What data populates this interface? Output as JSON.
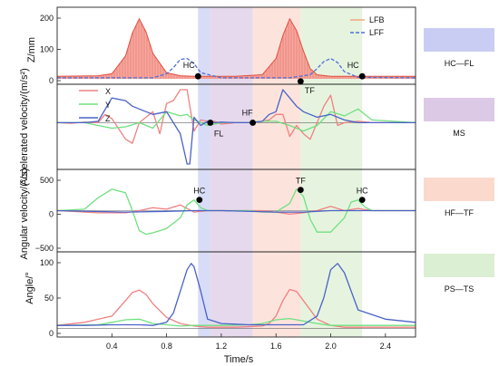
{
  "xlabel": "Time/s",
  "x_ticks": [
    "0.4",
    "0.8",
    "1.2",
    "1.6",
    "2.0",
    "2.4"
  ],
  "phase_legend": [
    {
      "label": "HC—FL",
      "color": "#c9cdf3"
    },
    {
      "label": "MS",
      "color": "#dcc9e6"
    },
    {
      "label": "HF—TF",
      "color": "#fbd9cd"
    },
    {
      "label": "PS—TS",
      "color": "#dbefd2"
    }
  ],
  "colors": {
    "x": "#f08080",
    "y": "#6fe07f",
    "z": "#4a62c8",
    "lfb": "#f3a07a",
    "lff": "#4f6fd8"
  },
  "chart_data": [
    {
      "type": "area",
      "ylabel": "Z/mm",
      "ylim": [
        0,
        130
      ],
      "y_ticks": [
        "200",
        "100",
        "0"
      ],
      "xlim": [
        0,
        2.62
      ],
      "series": [
        {
          "name": "LFB",
          "x": [
            0,
            0.3,
            0.4,
            0.5,
            0.55,
            0.6,
            0.65,
            0.7,
            0.8,
            0.9,
            1.0,
            1.3,
            1.5,
            1.6,
            1.65,
            1.7,
            1.75,
            1.8,
            1.85,
            1.9,
            2.0,
            2.1,
            2.2,
            2.62
          ],
          "values": [
            5,
            6,
            10,
            45,
            90,
            118,
            92,
            50,
            12,
            6,
            5,
            5,
            8,
            40,
            85,
            118,
            95,
            55,
            20,
            8,
            5,
            5,
            5,
            5
          ]
        },
        {
          "name": "LFF",
          "x": [
            0,
            0.7,
            0.8,
            0.85,
            0.9,
            0.95,
            1.0,
            1.05,
            1.2,
            1.7,
            1.85,
            1.9,
            1.95,
            2.0,
            2.05,
            2.1,
            2.2,
            2.62
          ],
          "values": [
            2,
            2,
            10,
            22,
            38,
            40,
            30,
            12,
            2,
            2,
            8,
            20,
            34,
            40,
            32,
            14,
            3,
            2
          ]
        }
      ],
      "events": [
        {
          "label": "HC",
          "x": 1.03,
          "y": 5
        },
        {
          "label": "TF",
          "x": 1.78,
          "y": -5
        },
        {
          "label": "HC",
          "x": 2.23,
          "y": 5
        }
      ]
    },
    {
      "type": "line",
      "ylabel": "Accelerated velocity/(m/s²)",
      "ylim": [
        -1.5,
        1.2
      ],
      "series": [
        {
          "name": "X",
          "x": [
            0,
            0.1,
            0.2,
            0.3,
            0.35,
            0.4,
            0.5,
            0.55,
            0.6,
            0.7,
            0.75,
            0.8,
            0.85,
            0.9,
            0.95,
            1.0,
            1.05,
            1.1,
            1.15,
            1.2,
            1.3,
            1.4,
            1.5,
            1.55,
            1.6,
            1.65,
            1.7,
            1.75,
            1.8,
            1.85,
            1.9,
            1.95,
            2.0,
            2.05,
            2.1,
            2.2,
            2.3,
            2.4,
            2.62
          ],
          "values": [
            0,
            -0.02,
            0.02,
            0,
            0.3,
            0.15,
            -0.6,
            -0.75,
            0,
            0.4,
            -0.4,
            0.7,
            0.8,
            1.4,
            1.2,
            -0.3,
            0.1,
            0.05,
            0.05,
            -0.05,
            0,
            0,
            0.05,
            0.1,
            0.3,
            0.3,
            -0.5,
            -0.1,
            -0.4,
            -0.6,
            0,
            0.6,
            1.0,
            -0.1,
            0,
            0.05,
            0,
            0,
            0
          ]
        },
        {
          "name": "Y",
          "x": [
            0,
            0.2,
            0.3,
            0.4,
            0.5,
            0.6,
            0.7,
            0.8,
            0.9,
            0.95,
            1.0,
            1.1,
            1.2,
            1.4,
            1.5,
            1.6,
            1.7,
            1.8,
            1.9,
            2.0,
            2.1,
            2.2,
            2.3,
            2.62
          ],
          "values": [
            0,
            0,
            -0.1,
            -0.2,
            -0.15,
            0,
            -0.2,
            0.4,
            0.25,
            0.3,
            0.1,
            -0.1,
            0,
            0,
            0.05,
            0.05,
            -0.1,
            -0.3,
            -0.1,
            0.4,
            0.25,
            0.5,
            0.1,
            0
          ]
        },
        {
          "name": "Z",
          "x": [
            0,
            0.2,
            0.3,
            0.4,
            0.5,
            0.55,
            0.6,
            0.7,
            0.8,
            0.9,
            0.95,
            0.97,
            1.0,
            1.05,
            1.1,
            1.15,
            1.2,
            1.3,
            1.4,
            1.5,
            1.55,
            1.6,
            1.65,
            1.7,
            1.75,
            1.8,
            1.9,
            2.0,
            2.1,
            2.2,
            2.3,
            2.62
          ],
          "values": [
            0,
            0,
            0.05,
            0.9,
            0.8,
            0.6,
            0.5,
            0.3,
            0.4,
            -0.4,
            -1.55,
            -1.55,
            0.2,
            -0.1,
            0.05,
            0,
            0.02,
            0,
            0,
            0.05,
            0.3,
            0.4,
            1.2,
            0.9,
            0.6,
            0.4,
            0.2,
            0.3,
            0.1,
            0,
            0,
            0
          ]
        }
      ],
      "events": [
        {
          "label": "FL",
          "x": 1.12,
          "y": 0
        },
        {
          "label": "HF",
          "x": 1.43,
          "y": 0
        }
      ]
    },
    {
      "type": "line",
      "ylabel": "Angular velocity/(°/s)",
      "y_ticks": [
        "500",
        "0",
        "−500"
      ],
      "ylim": [
        -500,
        500
      ],
      "series": [
        {
          "name": "X",
          "x": [
            0,
            0.3,
            0.5,
            0.6,
            0.7,
            0.8,
            0.9,
            1.0,
            1.1,
            1.3,
            1.5,
            1.6,
            1.7,
            1.8,
            1.9,
            2.0,
            2.1,
            2.2,
            2.3,
            2.62
          ],
          "values": [
            0,
            -30,
            -30,
            0,
            40,
            20,
            80,
            -20,
            0,
            0,
            0,
            -20,
            -50,
            -30,
            0,
            60,
            0,
            30,
            0,
            0
          ]
        },
        {
          "name": "Y",
          "x": [
            0,
            0.2,
            0.3,
            0.4,
            0.5,
            0.55,
            0.6,
            0.65,
            0.7,
            0.8,
            0.9,
            0.95,
            1.0,
            1.05,
            1.1,
            1.2,
            1.4,
            1.5,
            1.6,
            1.7,
            1.75,
            1.8,
            1.85,
            1.9,
            2.0,
            2.1,
            2.15,
            2.2,
            2.25,
            2.3,
            2.62
          ],
          "values": [
            0,
            20,
            180,
            300,
            250,
            0,
            -280,
            -330,
            -310,
            -250,
            -100,
            80,
            150,
            40,
            0,
            0,
            0,
            -20,
            -20,
            100,
            300,
            200,
            -120,
            -300,
            -300,
            -100,
            120,
            150,
            50,
            0,
            0
          ]
        },
        {
          "name": "Z",
          "x": [
            0,
            0.5,
            0.8,
            1.0,
            1.2,
            1.6,
            1.8,
            2.0,
            2.2,
            2.62
          ],
          "values": [
            0,
            -20,
            -10,
            0,
            0,
            -20,
            -20,
            0,
            0,
            0
          ]
        }
      ],
      "events": [
        {
          "label": "HC",
          "x": 1.04,
          "y": 150
        },
        {
          "label": "TF",
          "x": 1.78,
          "y": 290
        },
        {
          "label": "HC",
          "x": 2.23,
          "y": 150
        }
      ]
    },
    {
      "type": "line",
      "ylabel": "Angle/°",
      "y_ticks": [
        "100",
        "50",
        "0"
      ],
      "ylim": [
        -5,
        115
      ],
      "series": [
        {
          "name": "X",
          "x": [
            0,
            0.2,
            0.4,
            0.5,
            0.55,
            0.6,
            0.65,
            0.7,
            0.8,
            0.9,
            1.0,
            1.1,
            1.3,
            1.5,
            1.55,
            1.6,
            1.65,
            1.7,
            1.75,
            1.8,
            1.9,
            2.0,
            2.1,
            2.2,
            2.62
          ],
          "values": [
            5,
            10,
            20,
            45,
            58,
            62,
            55,
            40,
            18,
            8,
            4,
            2,
            2,
            4,
            8,
            20,
            45,
            63,
            60,
            45,
            15,
            5,
            2,
            2,
            2
          ]
        },
        {
          "name": "Y",
          "x": [
            0,
            0.3,
            0.4,
            0.5,
            0.6,
            0.7,
            0.8,
            0.9,
            1.0,
            1.2,
            1.4,
            1.5,
            1.6,
            1.7,
            1.8,
            1.9,
            2.0,
            2.2,
            2.4,
            2.62
          ],
          "values": [
            5,
            6,
            10,
            14,
            15,
            8,
            6,
            4,
            5,
            5,
            6,
            8,
            14,
            16,
            12,
            8,
            5,
            5,
            5,
            5
          ]
        },
        {
          "name": "Z",
          "x": [
            0,
            0.2,
            0.4,
            0.6,
            0.7,
            0.8,
            0.85,
            0.9,
            0.95,
            0.98,
            1.0,
            1.05,
            1.1,
            1.2,
            1.4,
            1.6,
            1.7,
            1.8,
            1.9,
            1.95,
            2.0,
            2.05,
            2.1,
            2.2,
            2.4,
            2.62
          ],
          "values": [
            5,
            5,
            6,
            6,
            5,
            10,
            25,
            60,
            95,
            105,
            100,
            60,
            15,
            8,
            6,
            6,
            6,
            6,
            20,
            50,
            95,
            105,
            90,
            30,
            15,
            10
          ]
        }
      ]
    }
  ]
}
